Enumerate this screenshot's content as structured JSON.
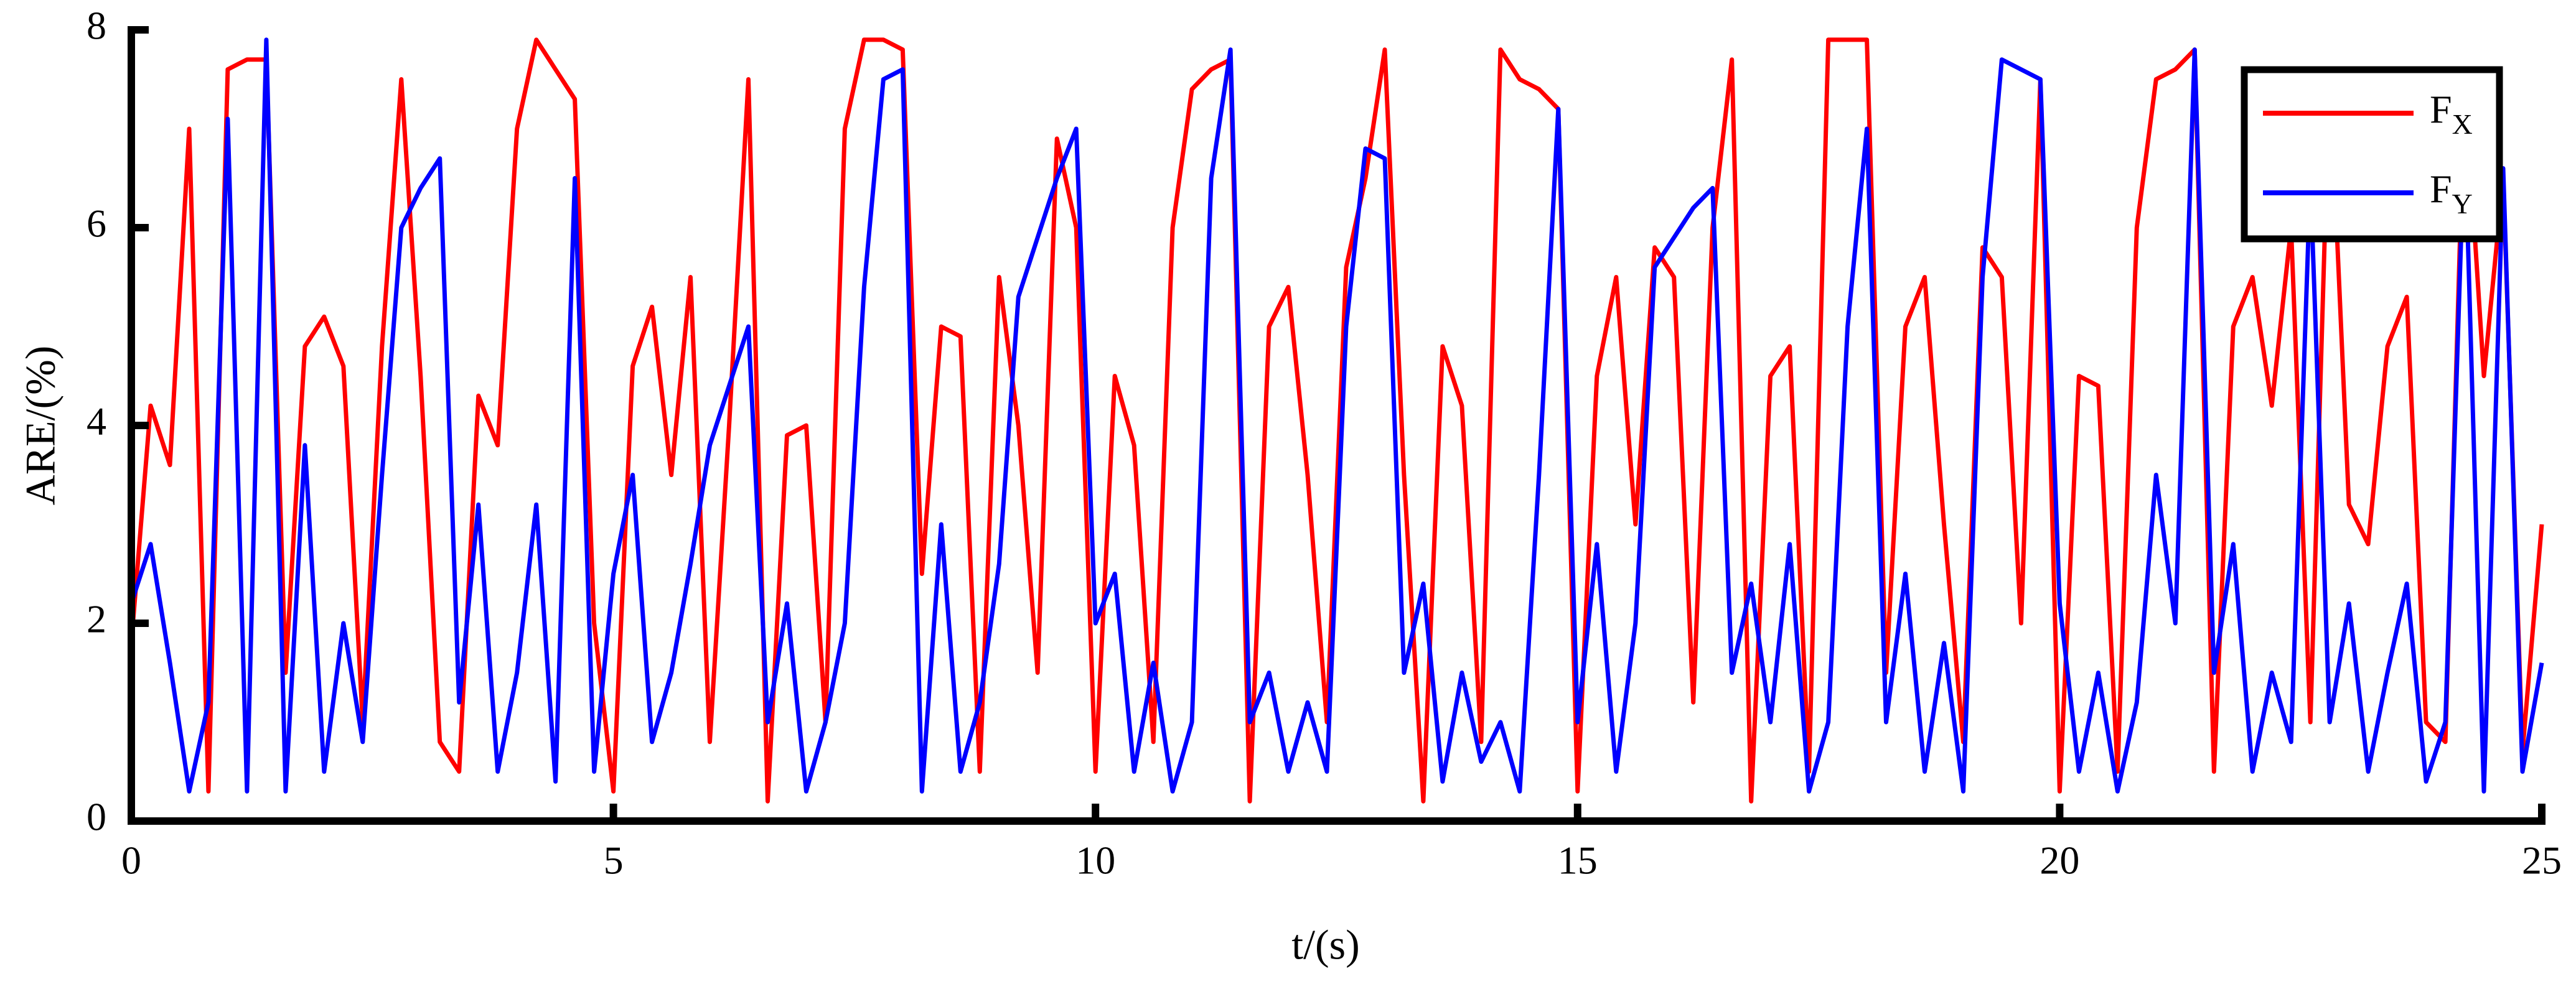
{
  "chart_data": {
    "type": "line",
    "xlabel": "t/(s)",
    "ylabel": "ARE/(%)",
    "xlim": [
      0,
      25
    ],
    "xticks": [
      0,
      5,
      10,
      15,
      20,
      25
    ],
    "ylim": [
      0,
      8
    ],
    "yticks": [
      0,
      2,
      4,
      6,
      8
    ],
    "legend": "upper right",
    "grid": false,
    "x": [
      0,
      0.2,
      0.4,
      0.6,
      0.8,
      1,
      1.2,
      1.4,
      1.6,
      1.8,
      2,
      2.2,
      2.4,
      2.6,
      2.8,
      3,
      3.2,
      3.4,
      3.6,
      3.8,
      4,
      4.2,
      4.4,
      4.6,
      4.8,
      5,
      5.2,
      5.4,
      5.6,
      5.8,
      6,
      6.2,
      6.4,
      6.6,
      6.8,
      7,
      7.2,
      7.4,
      7.6,
      7.8,
      8,
      8.2,
      8.4,
      8.6,
      8.8,
      9,
      9.2,
      9.4,
      9.6,
      9.8,
      10,
      10.2,
      10.4,
      10.6,
      10.8,
      11,
      11.2,
      11.4,
      11.6,
      11.8,
      12,
      12.2,
      12.4,
      12.6,
      12.8,
      13,
      13.2,
      13.4,
      13.6,
      13.8,
      14,
      14.2,
      14.4,
      14.6,
      14.8,
      15,
      15.2,
      15.4,
      15.6,
      15.8,
      16,
      16.2,
      16.4,
      16.6,
      16.8,
      17,
      17.2,
      17.4,
      17.6,
      17.8,
      18,
      18.2,
      18.4,
      18.6,
      18.8,
      19,
      19.2,
      19.4,
      19.6,
      19.8,
      20,
      20.2,
      20.4,
      20.6,
      20.8,
      21,
      21.2,
      21.4,
      21.6,
      21.8,
      22,
      22.2,
      22.4,
      22.6,
      22.8,
      23,
      23.2,
      23.4,
      23.6,
      23.8,
      24,
      24.2,
      24.4,
      24.6,
      24.8,
      25
    ],
    "series": [
      {
        "name": "FX",
        "color": "#ff0000",
        "values": [
          1.8,
          4.2,
          3.6,
          7.0,
          0.3,
          7.6,
          7.7,
          7.7,
          1.5,
          4.8,
          5.1,
          4.6,
          1.0,
          4.8,
          7.5,
          4.5,
          0.8,
          0.5,
          4.3,
          3.8,
          7.0,
          7.9,
          7.6,
          7.3,
          2.0,
          0.3,
          4.6,
          5.2,
          3.5,
          5.5,
          0.8,
          4.0,
          7.5,
          0.2,
          3.9,
          4.0,
          1.0,
          7.0,
          7.9,
          7.9,
          7.8,
          2.5,
          5.0,
          4.9,
          0.5,
          5.5,
          4.0,
          1.5,
          6.9,
          6.0,
          0.5,
          4.5,
          3.8,
          0.8,
          6.0,
          7.4,
          7.6,
          7.7,
          0.2,
          5.0,
          5.4,
          3.5,
          1.0,
          5.6,
          6.5,
          7.8,
          3.5,
          0.2,
          4.8,
          4.2,
          0.8,
          7.8,
          7.5,
          7.4,
          7.2,
          0.3,
          4.5,
          5.5,
          3.0,
          5.8,
          5.5,
          1.2,
          6.0,
          7.7,
          0.2,
          4.5,
          4.8,
          0.5,
          7.9,
          7.9,
          7.9,
          1.5,
          5.0,
          5.5,
          3.0,
          0.8,
          5.8,
          5.5,
          2.0,
          7.5,
          0.3,
          4.5,
          4.4,
          0.5,
          6.0,
          7.5,
          7.6,
          7.8,
          0.5,
          5.0,
          5.5,
          4.2,
          6.0,
          1.0,
          7.6,
          3.2,
          2.8,
          4.8,
          5.3,
          1.0,
          0.8,
          7.5,
          4.5,
          6.5,
          0.7,
          3.0
        ]
      },
      {
        "name": "FY",
        "color": "#0000ff",
        "values": [
          2.2,
          2.8,
          1.6,
          0.3,
          1.2,
          7.1,
          0.3,
          7.9,
          0.3,
          3.8,
          0.5,
          2.0,
          0.8,
          3.5,
          6.0,
          6.4,
          6.7,
          1.2,
          3.2,
          0.5,
          1.5,
          3.2,
          0.4,
          6.5,
          0.5,
          2.5,
          3.5,
          0.8,
          1.5,
          2.6,
          3.8,
          4.4,
          5.0,
          1.0,
          2.2,
          0.3,
          1.0,
          2.0,
          5.4,
          7.5,
          7.6,
          0.3,
          3.0,
          0.5,
          1.2,
          2.6,
          5.3,
          5.9,
          6.5,
          7.0,
          2.0,
          2.5,
          0.5,
          1.6,
          0.3,
          1.0,
          6.5,
          7.8,
          1.0,
          1.5,
          0.5,
          1.2,
          0.5,
          5.0,
          6.8,
          6.7,
          1.5,
          2.4,
          0.4,
          1.5,
          0.6,
          1.0,
          0.3,
          3.5,
          7.2,
          1.0,
          2.8,
          0.5,
          2.0,
          5.6,
          5.9,
          6.2,
          6.4,
          1.5,
          2.4,
          1.0,
          2.8,
          0.3,
          1.0,
          5.0,
          7.0,
          1.0,
          2.5,
          0.5,
          1.8,
          0.3,
          5.5,
          7.7,
          7.6,
          7.5,
          2.2,
          0.5,
          1.5,
          0.3,
          1.2,
          3.5,
          2.0,
          7.8,
          1.5,
          2.8,
          0.5,
          1.5,
          0.8,
          6.5,
          1.0,
          2.2,
          0.5,
          1.5,
          2.4,
          0.4,
          1.0,
          7.0,
          0.3,
          6.6,
          0.5,
          1.6
        ]
      }
    ]
  }
}
